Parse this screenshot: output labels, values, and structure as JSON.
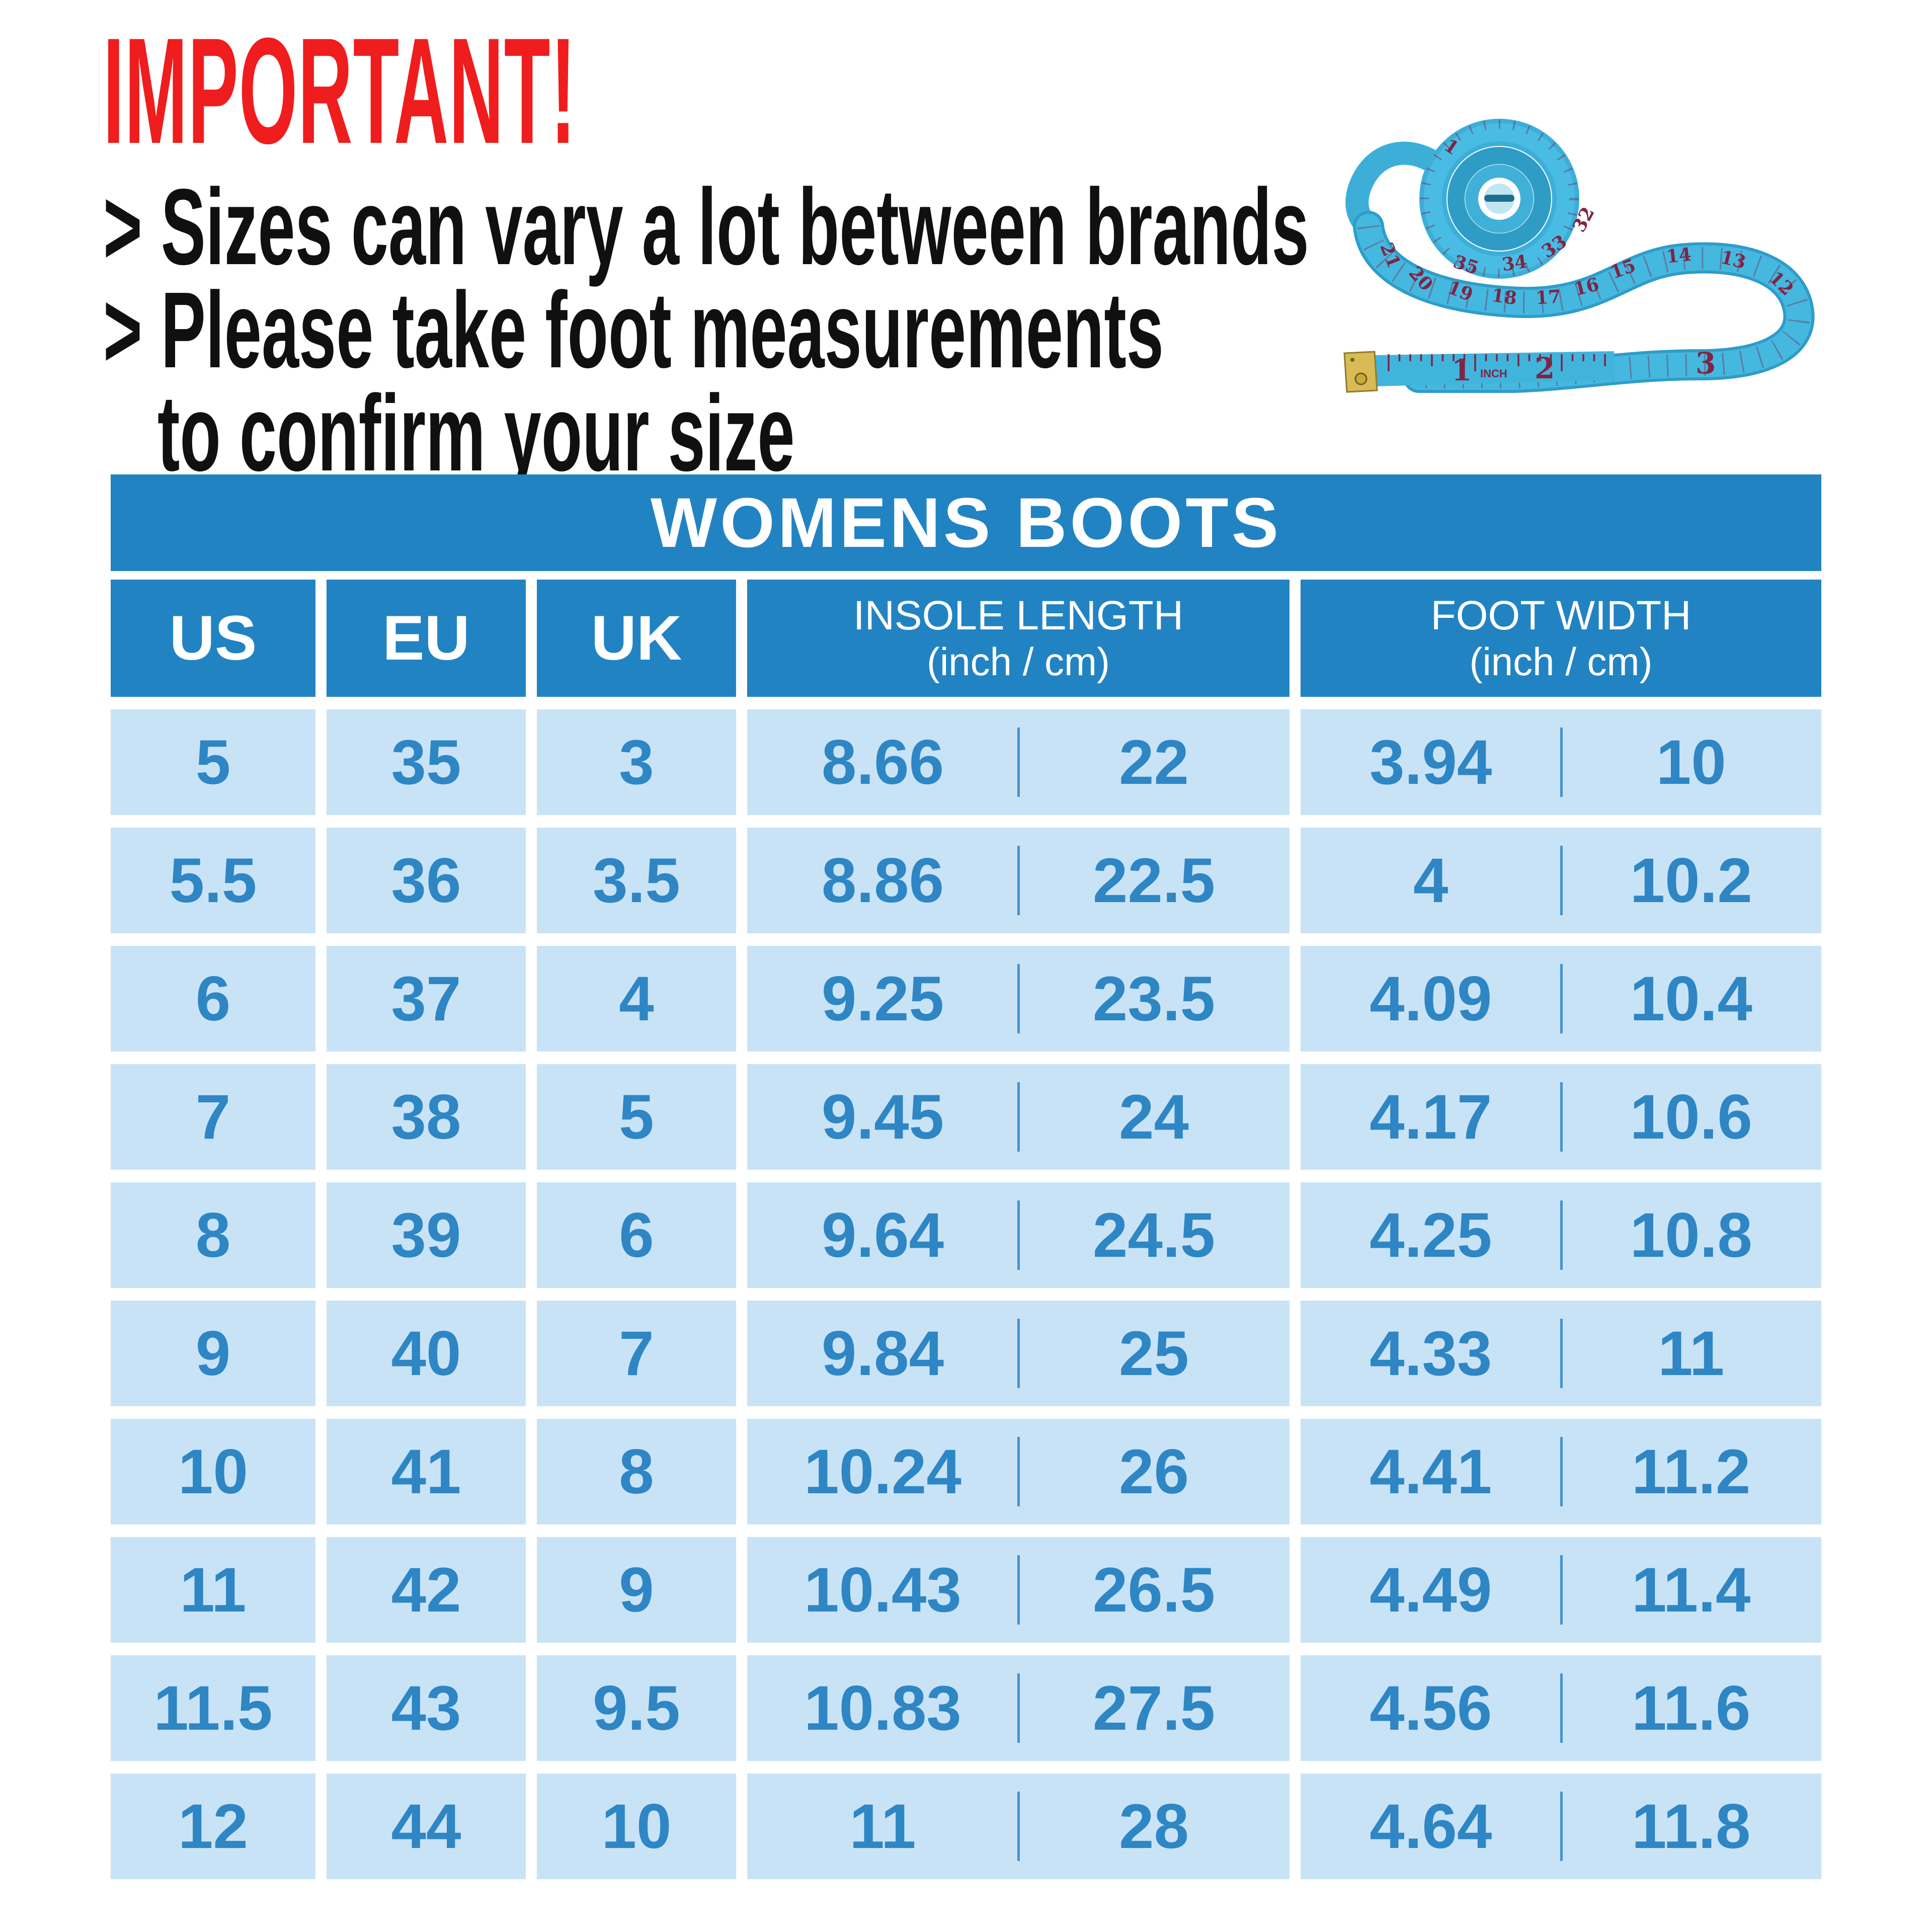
{
  "notice": {
    "title": "IMPORTANT!",
    "lines": [
      "> Sizes can vary a lot between brands",
      "> Please take foot measurements",
      "to confirm your size"
    ],
    "title_color": "#EF1D1D",
    "text_color": "#101010"
  },
  "tape_image": {
    "unit_label": "INCH",
    "inch_numbers": [
      "1",
      "2",
      "3"
    ],
    "band_numbers": [
      "21",
      "20",
      "19",
      "18",
      "17",
      "16",
      "15",
      "14",
      "13",
      "12"
    ],
    "coil_numbers": [
      "35",
      "34",
      "33",
      "32",
      "1"
    ],
    "tape_color": "#45B8E0",
    "marking_color": "#7E2546",
    "metal_tip_color": "#D8BB54"
  },
  "table": {
    "title": "WOMENS BOOTS",
    "header_bg": "#2283C3",
    "cell_bg": "#C9E3F6",
    "value_color": "#2E86C4",
    "columns": [
      {
        "label": "US"
      },
      {
        "label": "EU"
      },
      {
        "label": "UK"
      },
      {
        "label": "INSOLE LENGTH",
        "sub": "(inch / cm)"
      },
      {
        "label": "FOOT WIDTH",
        "sub": "(inch / cm)"
      }
    ],
    "rows": [
      {
        "us": "5",
        "eu": "35",
        "uk": "3",
        "insole_inch": "8.66",
        "insole_cm": "22",
        "width_inch": "3.94",
        "width_cm": "10"
      },
      {
        "us": "5.5",
        "eu": "36",
        "uk": "3.5",
        "insole_inch": "8.86",
        "insole_cm": "22.5",
        "width_inch": "4",
        "width_cm": "10.2"
      },
      {
        "us": "6",
        "eu": "37",
        "uk": "4",
        "insole_inch": "9.25",
        "insole_cm": "23.5",
        "width_inch": "4.09",
        "width_cm": "10.4"
      },
      {
        "us": "7",
        "eu": "38",
        "uk": "5",
        "insole_inch": "9.45",
        "insole_cm": "24",
        "width_inch": "4.17",
        "width_cm": "10.6"
      },
      {
        "us": "8",
        "eu": "39",
        "uk": "6",
        "insole_inch": "9.64",
        "insole_cm": "24.5",
        "width_inch": "4.25",
        "width_cm": "10.8"
      },
      {
        "us": "9",
        "eu": "40",
        "uk": "7",
        "insole_inch": "9.84",
        "insole_cm": "25",
        "width_inch": "4.33",
        "width_cm": "11"
      },
      {
        "us": "10",
        "eu": "41",
        "uk": "8",
        "insole_inch": "10.24",
        "insole_cm": "26",
        "width_inch": "4.41",
        "width_cm": "11.2"
      },
      {
        "us": "11",
        "eu": "42",
        "uk": "9",
        "insole_inch": "10.43",
        "insole_cm": "26.5",
        "width_inch": "4.49",
        "width_cm": "11.4"
      },
      {
        "us": "11.5",
        "eu": "43",
        "uk": "9.5",
        "insole_inch": "10.83",
        "insole_cm": "27.5",
        "width_inch": "4.56",
        "width_cm": "11.6"
      },
      {
        "us": "12",
        "eu": "44",
        "uk": "10",
        "insole_inch": "11",
        "insole_cm": "28",
        "width_inch": "4.64",
        "width_cm": "11.8"
      }
    ]
  }
}
